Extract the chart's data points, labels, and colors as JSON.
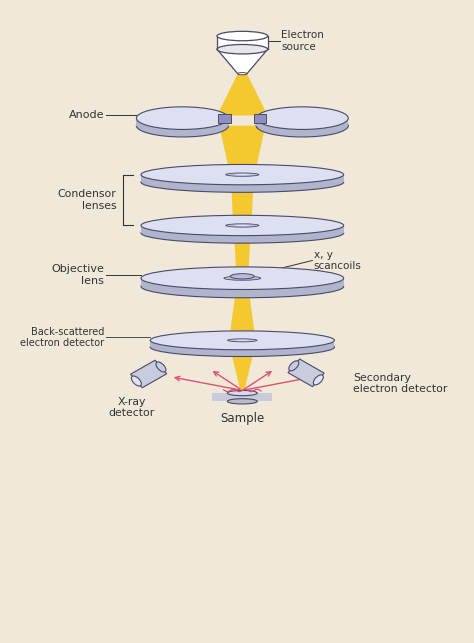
{
  "bg_color": "#f0e8d8",
  "disk_color_face": "#dde0f0",
  "disk_color_edge": "#4a4a6a",
  "disk_color_shadow": "#b0b4cc",
  "beam_color": "#f5c518",
  "beam_alpha": 0.88,
  "arrow_color": "#e05070",
  "label_color": "#333333",
  "source_label": "Electron\nsource",
  "anode_label": "Anode",
  "condensor_label": "Condensor\nlenses",
  "objective_label": "Objective\nlens",
  "backscattered_label": "Back-scattered\nelectron detector",
  "scancoils_label": "x, y\nscancoils",
  "xray_label": "X-ray\ndetector",
  "secondary_label": "Secondary\nelectron detector",
  "sample_label": "Sample",
  "cylinder_color": "#c8ccdc",
  "hole_color": "#c0c4da",
  "hole_inner_color": "#e0e4f4"
}
